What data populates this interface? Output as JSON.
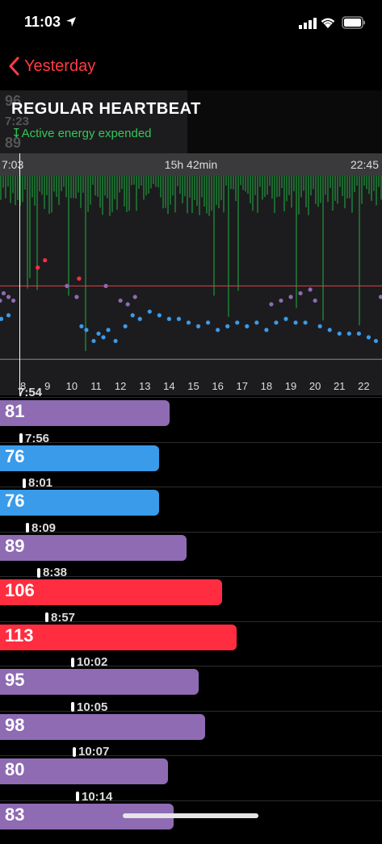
{
  "status_bar": {
    "time": "11:03"
  },
  "nav": {
    "back_label": "Yesterday"
  },
  "ghost_values": [
    "96",
    "7:23",
    "89"
  ],
  "section": {
    "title": "REGULAR HEARTBEAT",
    "subtitle": "↧Active energy expended"
  },
  "range": {
    "start": "7:03",
    "duration": "15h 42min",
    "end": "22:45"
  },
  "hour_labels": [
    "8",
    "9",
    "10",
    "11",
    "12",
    "13",
    "14",
    "15",
    "16",
    "17",
    "18",
    "19",
    "20",
    "21",
    "22"
  ],
  "colors": {
    "purple": "#8e6bb3",
    "blue": "#3a9bea",
    "red": "#ff2d3f",
    "green": "#1f7a34",
    "accent_red": "#ff3b45"
  },
  "chart_data": {
    "type": "scatter",
    "x_hours": [
      7.05,
      22.75
    ],
    "series": [
      {
        "name": "",
        "color": "#3a9bea",
        "points": [
          [
            7.1,
            76
          ],
          [
            7.4,
            77
          ],
          [
            10.4,
            74
          ],
          [
            10.6,
            73
          ],
          [
            10.9,
            70
          ],
          [
            11.1,
            72
          ],
          [
            11.3,
            71
          ],
          [
            11.5,
            73
          ],
          [
            11.8,
            70
          ],
          [
            12.2,
            74
          ],
          [
            12.5,
            77
          ],
          [
            12.8,
            76
          ],
          [
            13.2,
            78
          ],
          [
            13.6,
            77
          ],
          [
            14.0,
            76
          ],
          [
            14.4,
            76
          ],
          [
            14.8,
            75
          ],
          [
            15.2,
            74
          ],
          [
            15.6,
            75
          ],
          [
            16.0,
            73
          ],
          [
            16.4,
            74
          ],
          [
            16.8,
            75
          ],
          [
            17.2,
            74
          ],
          [
            17.6,
            75
          ],
          [
            18.0,
            73
          ],
          [
            18.4,
            75
          ],
          [
            18.8,
            76
          ],
          [
            19.2,
            75
          ],
          [
            19.6,
            75
          ],
          [
            20.2,
            74
          ],
          [
            20.6,
            73
          ],
          [
            21.0,
            72
          ],
          [
            21.4,
            72
          ],
          [
            21.8,
            72
          ],
          [
            22.2,
            71
          ],
          [
            22.5,
            70
          ]
        ]
      },
      {
        "name": "",
        "color": "#8e6bb3",
        "points": [
          [
            7.05,
            81
          ],
          [
            7.2,
            83
          ],
          [
            7.4,
            82
          ],
          [
            7.6,
            81
          ],
          [
            9.8,
            85
          ],
          [
            10.2,
            82
          ],
          [
            11.4,
            85
          ],
          [
            12.0,
            81
          ],
          [
            12.3,
            80
          ],
          [
            12.6,
            82
          ],
          [
            18.2,
            80
          ],
          [
            18.6,
            81
          ],
          [
            19.0,
            82
          ],
          [
            19.4,
            83
          ],
          [
            19.8,
            84
          ],
          [
            20.0,
            81
          ],
          [
            22.7,
            82
          ]
        ]
      },
      {
        "name": "",
        "color": "#ff2d3f",
        "points": [
          [
            8.6,
            90
          ],
          [
            8.9,
            92
          ],
          [
            10.3,
            87
          ]
        ]
      }
    ],
    "ylim": [
      60,
      115
    ],
    "ref_lines": [
      85,
      65
    ]
  },
  "readings": [
    {
      "time": "7:54",
      "value": "81",
      "color": "#8e6bb3",
      "frac": 0.445
    },
    {
      "time": "7:56",
      "value": "76",
      "color": "#3a9bea",
      "frac": 0.417
    },
    {
      "time": "8:01",
      "value": "76",
      "color": "#3a9bea",
      "frac": 0.417
    },
    {
      "time": "8:09",
      "value": "89",
      "color": "#8e6bb3",
      "frac": 0.488
    },
    {
      "time": "8:38",
      "value": "106",
      "color": "#ff2d3f",
      "frac": 0.581
    },
    {
      "time": "8:57",
      "value": "113",
      "color": "#ff2d3f",
      "frac": 0.62
    },
    {
      "time": "10:02",
      "value": "95",
      "color": "#8e6bb3",
      "frac": 0.521
    },
    {
      "time": "10:05",
      "value": "98",
      "color": "#8e6bb3",
      "frac": 0.537
    },
    {
      "time": "10:07",
      "value": "80",
      "color": "#8e6bb3",
      "frac": 0.439
    },
    {
      "time": "10:14",
      "value": "83",
      "color": "#8e6bb3",
      "frac": 0.455
    }
  ]
}
